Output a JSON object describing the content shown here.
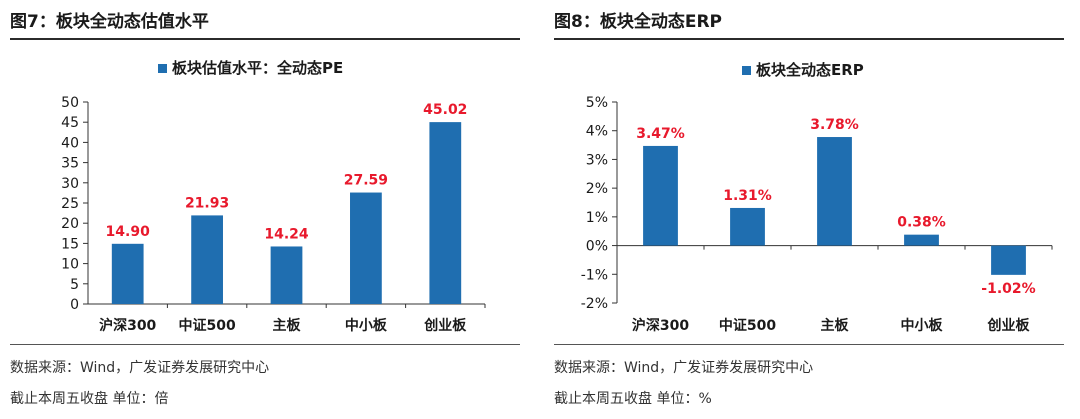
{
  "colors": {
    "bar": "#1f6eb0",
    "label": "#e8192c",
    "axis": "#333333"
  },
  "chart_data": [
    {
      "type": "bar",
      "figure_title": "图7：板块全动态估值水平",
      "legend": "板块估值水平：全动态PE",
      "categories": [
        "沪深300",
        "中证500",
        "主板",
        "中小板",
        "创业板"
      ],
      "values": [
        14.9,
        21.93,
        14.24,
        27.59,
        45.02
      ],
      "value_labels": [
        "14.90",
        "21.93",
        "14.24",
        "27.59",
        "45.02"
      ],
      "ylim": [
        0,
        50
      ],
      "yticks": [
        0,
        5,
        10,
        15,
        20,
        25,
        30,
        35,
        40,
        45,
        50
      ],
      "ytick_labels": [
        "0",
        "5",
        "10",
        "15",
        "20",
        "25",
        "30",
        "35",
        "40",
        "45",
        "50"
      ],
      "source": "数据来源：Wind，广发证券发展研究中心",
      "note": "截止本周五收盘 单位：倍"
    },
    {
      "type": "bar",
      "figure_title": "图8：板块全动态ERP",
      "legend": "板块全动态ERP",
      "categories": [
        "沪深300",
        "中证500",
        "主板",
        "中小板",
        "创业板"
      ],
      "values": [
        3.47,
        1.31,
        3.78,
        0.38,
        -1.02
      ],
      "value_labels": [
        "3.47%",
        "1.31%",
        "3.78%",
        "0.38%",
        "-1.02%"
      ],
      "ylim": [
        -2,
        5
      ],
      "yticks": [
        -2,
        -1,
        0,
        1,
        2,
        3,
        4,
        5
      ],
      "ytick_labels": [
        "-2%",
        "-1%",
        "0%",
        "1%",
        "2%",
        "3%",
        "4%",
        "5%"
      ],
      "source": "数据来源：Wind，广发证券发展研究中心",
      "note": "截止本周五收盘 单位：%"
    }
  ]
}
